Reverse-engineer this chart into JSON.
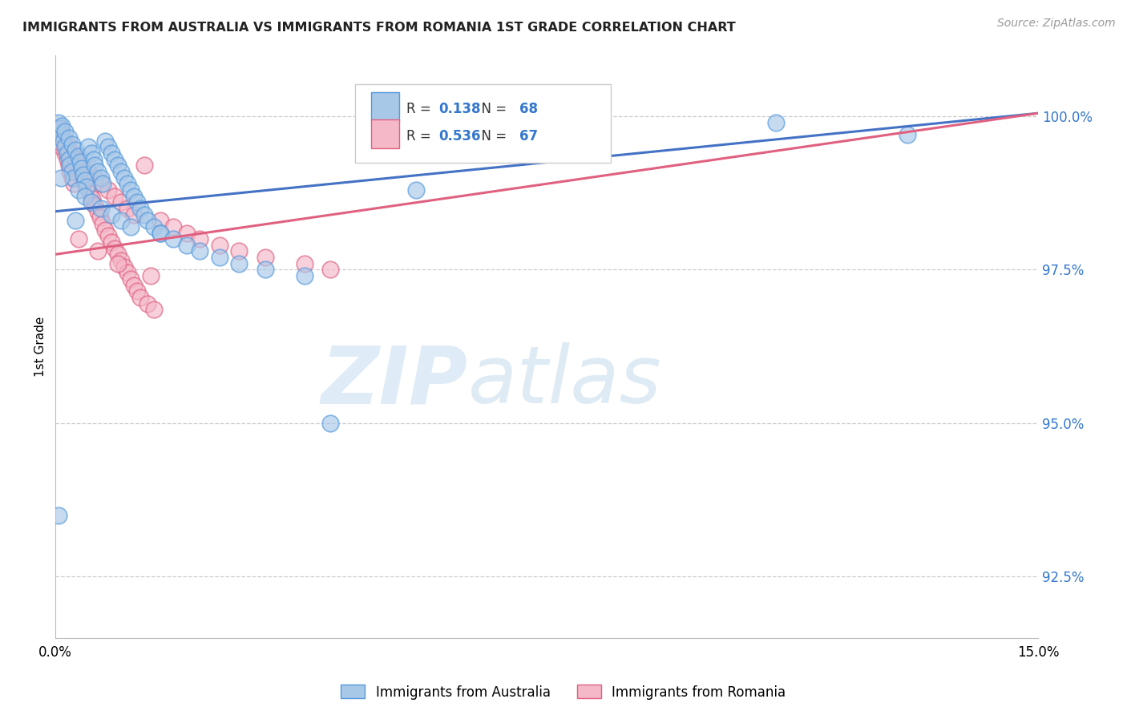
{
  "title": "IMMIGRANTS FROM AUSTRALIA VS IMMIGRANTS FROM ROMANIA 1ST GRADE CORRELATION CHART",
  "source": "Source: ZipAtlas.com",
  "ylabel": "1st Grade",
  "ylabel_right_ticks": [
    92.5,
    95.0,
    97.5,
    100.0
  ],
  "xmin": 0.0,
  "xmax": 15.0,
  "ymin": 91.5,
  "ymax": 101.0,
  "R_australia": 0.138,
  "N_australia": 68,
  "R_romania": 0.536,
  "N_romania": 67,
  "color_australia_fill": "#A8C8E8",
  "color_australia_edge": "#5599DD",
  "color_romania_fill": "#F4B8C8",
  "color_romania_edge": "#E06080",
  "color_trend_australia": "#4472C4",
  "color_trend_romania": "#E06080",
  "watermark_zip": "ZIP",
  "watermark_atlas": "atlas",
  "aus_trendline_y0": 98.45,
  "aus_trendline_y1": 100.05,
  "rom_trendline_y0": 97.75,
  "rom_trendline_y1": 100.05,
  "australia_x": [
    0.05,
    0.08,
    0.1,
    0.12,
    0.15,
    0.18,
    0.2,
    0.22,
    0.25,
    0.28,
    0.1,
    0.15,
    0.2,
    0.25,
    0.3,
    0.35,
    0.38,
    0.4,
    0.42,
    0.45,
    0.48,
    0.5,
    0.55,
    0.58,
    0.6,
    0.65,
    0.7,
    0.72,
    0.75,
    0.8,
    0.85,
    0.9,
    0.95,
    1.0,
    1.05,
    1.1,
    1.15,
    1.2,
    1.25,
    1.3,
    1.35,
    1.4,
    1.5,
    1.6,
    0.3,
    0.35,
    0.45,
    0.55,
    0.7,
    0.85,
    1.0,
    1.15,
    1.6,
    1.8,
    2.0,
    2.2,
    2.5,
    2.8,
    3.2,
    3.8,
    4.2,
    5.5,
    6.5,
    8.0,
    11.0,
    13.0,
    0.05,
    0.08
  ],
  "australia_y": [
    99.9,
    99.8,
    99.7,
    99.6,
    99.5,
    99.4,
    99.3,
    99.2,
    99.1,
    99.0,
    99.85,
    99.75,
    99.65,
    99.55,
    99.45,
    99.35,
    99.25,
    99.15,
    99.05,
    98.95,
    98.85,
    99.5,
    99.4,
    99.3,
    99.2,
    99.1,
    99.0,
    98.9,
    99.6,
    99.5,
    99.4,
    99.3,
    99.2,
    99.1,
    99.0,
    98.9,
    98.8,
    98.7,
    98.6,
    98.5,
    98.4,
    98.3,
    98.2,
    98.1,
    98.3,
    98.8,
    98.7,
    98.6,
    98.5,
    98.4,
    98.3,
    98.2,
    98.1,
    98.0,
    97.9,
    97.8,
    97.7,
    97.6,
    97.5,
    97.4,
    95.0,
    98.8,
    100.0,
    99.8,
    99.9,
    99.7,
    93.5,
    99.0
  ],
  "romania_x": [
    0.04,
    0.07,
    0.1,
    0.12,
    0.15,
    0.18,
    0.2,
    0.22,
    0.25,
    0.28,
    0.08,
    0.12,
    0.18,
    0.22,
    0.28,
    0.32,
    0.36,
    0.4,
    0.44,
    0.48,
    0.52,
    0.56,
    0.6,
    0.64,
    0.68,
    0.72,
    0.76,
    0.8,
    0.85,
    0.9,
    0.95,
    1.0,
    1.05,
    1.1,
    1.15,
    1.2,
    1.25,
    1.3,
    1.4,
    1.5,
    0.1,
    0.2,
    0.3,
    0.4,
    0.5,
    0.6,
    0.7,
    0.8,
    0.9,
    1.0,
    1.1,
    1.2,
    1.6,
    1.8,
    2.0,
    2.2,
    2.5,
    2.8,
    3.2,
    3.8,
    4.2,
    0.35,
    0.65,
    0.95,
    1.45,
    1.35,
    0.05
  ],
  "romania_y": [
    99.8,
    99.7,
    99.6,
    99.5,
    99.4,
    99.3,
    99.2,
    99.1,
    99.0,
    98.9,
    99.75,
    99.65,
    99.55,
    99.45,
    99.35,
    99.25,
    99.15,
    99.05,
    98.95,
    98.85,
    98.75,
    98.65,
    98.55,
    98.45,
    98.35,
    98.25,
    98.15,
    98.05,
    97.95,
    97.85,
    97.75,
    97.65,
    97.55,
    97.45,
    97.35,
    97.25,
    97.15,
    97.05,
    96.95,
    96.85,
    99.5,
    99.4,
    99.3,
    99.2,
    99.1,
    99.0,
    98.9,
    98.8,
    98.7,
    98.6,
    98.5,
    98.4,
    98.3,
    98.2,
    98.1,
    98.0,
    97.9,
    97.8,
    97.7,
    97.6,
    97.5,
    98.0,
    97.8,
    97.6,
    97.4,
    99.2,
    99.6
  ]
}
